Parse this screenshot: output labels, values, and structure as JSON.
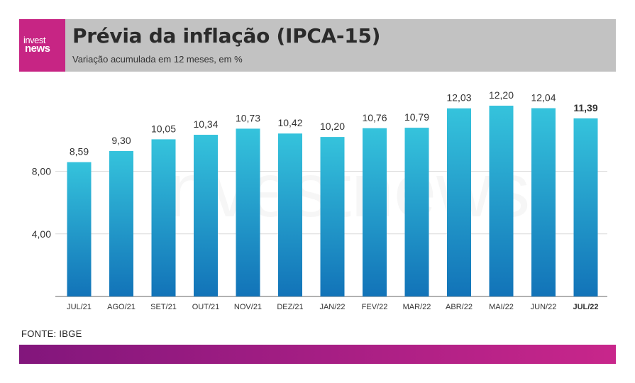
{
  "brand": {
    "logo_top": "invest",
    "logo_bottom": "news",
    "logo_bg": "#c72584",
    "watermark": "investnews"
  },
  "header": {
    "title": "Prévia da inflação (IPCA-15)",
    "subtitle": "Variação acumulada em 12 meses, em %"
  },
  "footer": {
    "source": "FONTE: IBGE"
  },
  "colors": {
    "bar_top": "#35c3dc",
    "bar_bottom": "#1273b8",
    "header_bg": "#c2c2c2",
    "band_start": "#82167c",
    "band_end": "#c8268b"
  },
  "chart_data": {
    "type": "bar",
    "categories": [
      "JUL/21",
      "AGO/21",
      "SET/21",
      "OUT/21",
      "NOV/21",
      "DEZ/21",
      "JAN/22",
      "FEV/22",
      "MAR/22",
      "ABR/22",
      "MAI/22",
      "JUN/22",
      "JUL/22"
    ],
    "values": [
      8.59,
      9.3,
      10.05,
      10.34,
      10.73,
      10.42,
      10.2,
      10.76,
      10.79,
      12.03,
      12.2,
      12.04,
      11.39
    ],
    "value_labels": [
      "8,59",
      "9,30",
      "10,05",
      "10,34",
      "10,73",
      "10,42",
      "10,20",
      "10,76",
      "10,79",
      "12,03",
      "12,20",
      "12,04",
      "11,39"
    ],
    "y_ticks": [
      4,
      8
    ],
    "y_tick_labels": [
      "4,00",
      "8,00"
    ],
    "ylim": [
      0,
      12.2
    ],
    "highlight_index": 12,
    "grid": true,
    "title": "",
    "xlabel": "",
    "ylabel": ""
  }
}
